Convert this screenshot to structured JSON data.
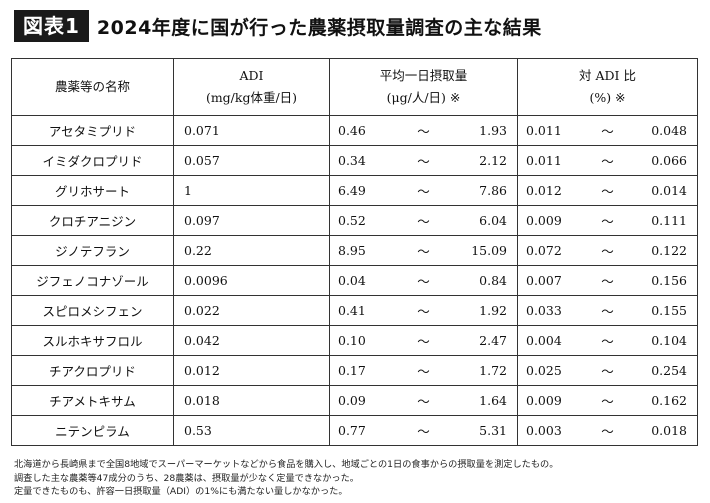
{
  "header": {
    "badge": "図表1",
    "title": "2024年度に国が行った農薬摂取量調査の主な結果"
  },
  "table": {
    "headers": {
      "name": "農薬等の名称",
      "adi_line1": "ADI",
      "adi_line2": "(mg/kg体重/日)",
      "intake_line1": "平均一日摂取量",
      "intake_line2": "(μg/人/日) ※",
      "ratio_line1": "対 ADI 比",
      "ratio_line2": "(%) ※"
    },
    "rows": [
      {
        "name": "アセタミプリド",
        "adi": "0.071",
        "intake_low": "0.46",
        "intake_sep": "〜",
        "intake_high": "1.93",
        "ratio_low": "0.011",
        "ratio_sep": "〜",
        "ratio_high": "0.048"
      },
      {
        "name": "イミダクロプリド",
        "adi": "0.057",
        "intake_low": "0.34",
        "intake_sep": "〜",
        "intake_high": "2.12",
        "ratio_low": "0.011",
        "ratio_sep": "〜",
        "ratio_high": "0.066"
      },
      {
        "name": "グリホサート",
        "adi": "1",
        "intake_low": "6.49",
        "intake_sep": "〜",
        "intake_high": "7.86",
        "ratio_low": "0.012",
        "ratio_sep": "〜",
        "ratio_high": "0.014"
      },
      {
        "name": "クロチアニジン",
        "adi": "0.097",
        "intake_low": "0.52",
        "intake_sep": "〜",
        "intake_high": "6.04",
        "ratio_low": "0.009",
        "ratio_sep": "〜",
        "ratio_high": "0.111"
      },
      {
        "name": "ジノテフラン",
        "adi": "0.22",
        "intake_low": "8.95",
        "intake_sep": "〜",
        "intake_high": "15.09",
        "ratio_low": "0.072",
        "ratio_sep": "〜",
        "ratio_high": "0.122"
      },
      {
        "name": "ジフェノコナゾール",
        "adi": "0.0096",
        "intake_low": "0.04",
        "intake_sep": "〜",
        "intake_high": "0.84",
        "ratio_low": "0.007",
        "ratio_sep": "〜",
        "ratio_high": "0.156"
      },
      {
        "name": "スピロメシフェン",
        "adi": "0.022",
        "intake_low": "0.41",
        "intake_sep": "〜",
        "intake_high": "1.92",
        "ratio_low": "0.033",
        "ratio_sep": "〜",
        "ratio_high": "0.155"
      },
      {
        "name": "スルホキサフロル",
        "adi": "0.042",
        "intake_low": "0.10",
        "intake_sep": "〜",
        "intake_high": "2.47",
        "ratio_low": "0.004",
        "ratio_sep": "〜",
        "ratio_high": "0.104"
      },
      {
        "name": "チアクロプリド",
        "adi": "0.012",
        "intake_low": "0.17",
        "intake_sep": "〜",
        "intake_high": "1.72",
        "ratio_low": "0.025",
        "ratio_sep": "〜",
        "ratio_high": "0.254"
      },
      {
        "name": "チアメトキサム",
        "adi": "0.018",
        "intake_low": "0.09",
        "intake_sep": "〜",
        "intake_high": "1.64",
        "ratio_low": "0.009",
        "ratio_sep": "〜",
        "ratio_high": "0.162"
      },
      {
        "name": "ニテンピラム",
        "adi": "0.53",
        "intake_low": "0.77",
        "intake_sep": "〜",
        "intake_high": "5.31",
        "ratio_low": "0.003",
        "ratio_sep": "〜",
        "ratio_high": "0.018"
      }
    ]
  },
  "notes": [
    "北海道から長崎県まで全国8地域でスーパーマーケットなどから食品を購入し、地域ごとの1日の食事からの摂取量を測定したもの。",
    "調査した主な農薬等47成分のうち、28農薬は、摂取量が少なく定量できなかった。",
    "定量できたものも、許容一日摂取量（ADI）の1%にも満たない量しかなかった。"
  ]
}
